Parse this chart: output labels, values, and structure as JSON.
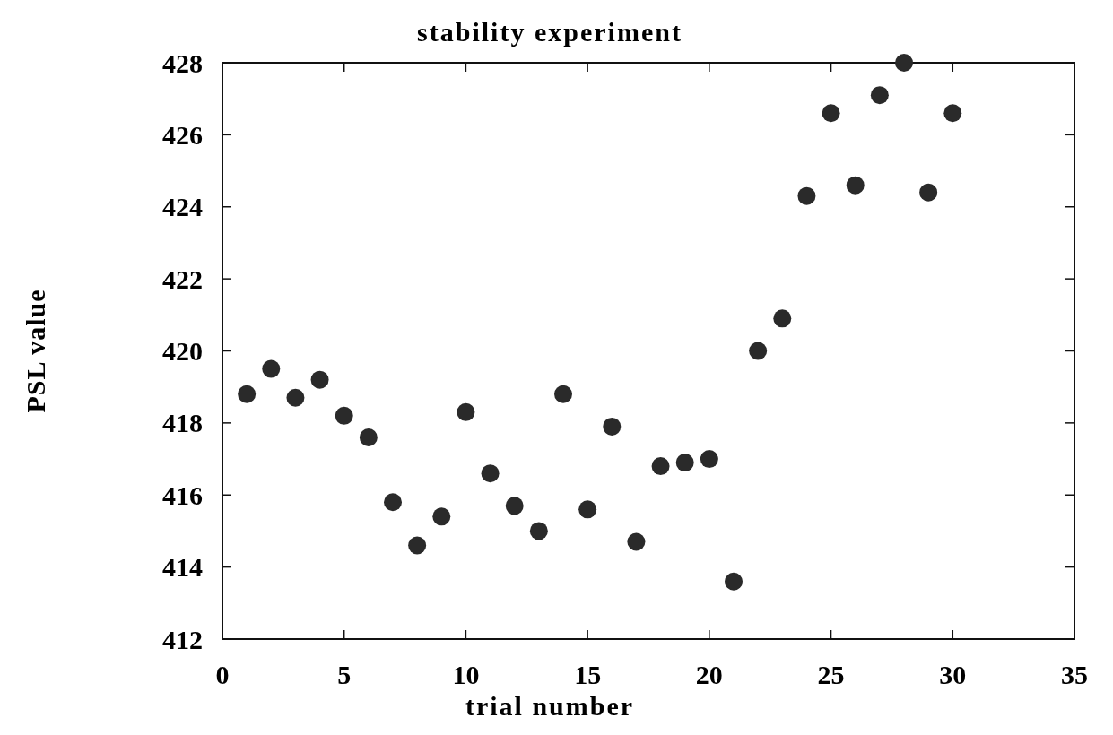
{
  "chart_data": {
    "type": "scatter",
    "title": "stability experiment",
    "xlabel": "trial number",
    "ylabel": "PSL value",
    "x": [
      1,
      2,
      3,
      4,
      5,
      6,
      7,
      8,
      9,
      10,
      11,
      12,
      13,
      14,
      15,
      16,
      17,
      18,
      19,
      20,
      21,
      22,
      23,
      24,
      25,
      26,
      27,
      28,
      29,
      30
    ],
    "series": [
      {
        "color": "#2a2a2a",
        "values": [
          418.8,
          419.5,
          418.7,
          419.2,
          418.2,
          417.6,
          415.8,
          414.6,
          415.4,
          418.3,
          416.6,
          415.7,
          415.0,
          418.8,
          415.6,
          417.9,
          414.7,
          416.8,
          416.9,
          417.0,
          413.6,
          420.0,
          420.9,
          424.3,
          426.6,
          424.6,
          427.1,
          428.0,
          424.4,
          426.6
        ]
      }
    ],
    "xlim": [
      0,
      35
    ],
    "xticks": [
      0,
      5,
      10,
      15,
      20,
      25,
      30,
      35
    ],
    "ylim": [
      412,
      428
    ],
    "yticks": [
      412,
      414,
      416,
      418,
      420,
      422,
      424,
      426,
      428
    ],
    "marker": "circle",
    "grid": false
  }
}
